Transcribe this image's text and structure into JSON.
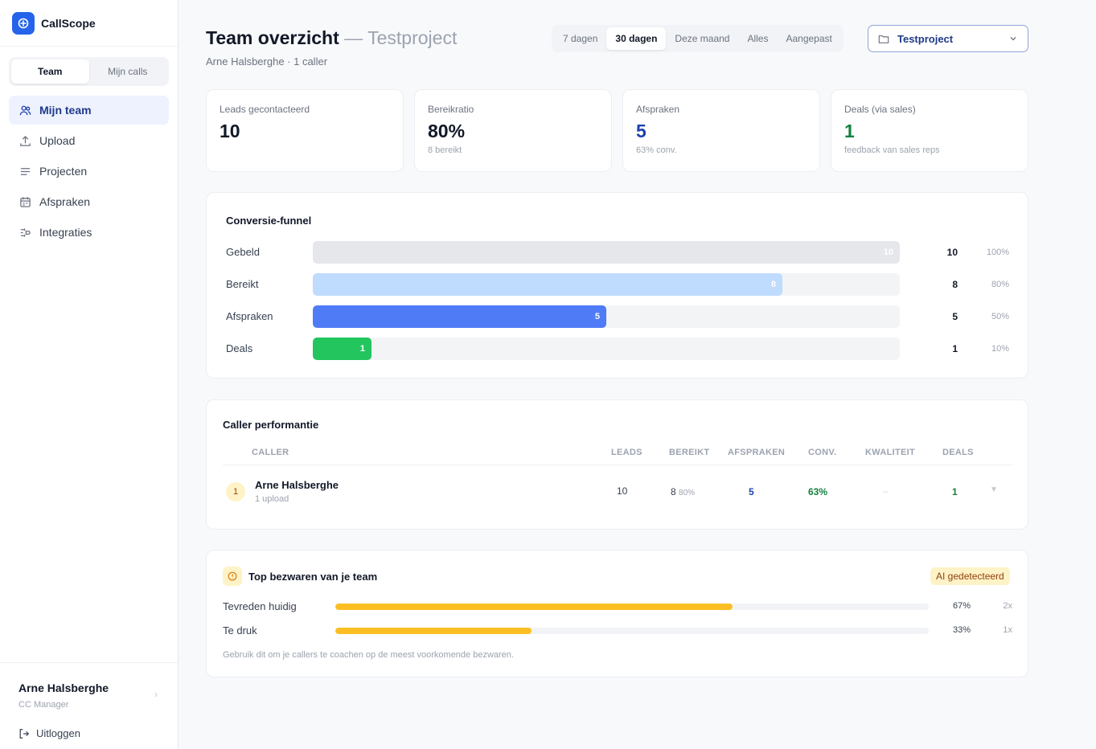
{
  "app": {
    "name": "CallScope"
  },
  "sidebar": {
    "tabs": [
      {
        "label": "Team",
        "active": true
      },
      {
        "label": "Mijn calls",
        "active": false
      }
    ],
    "items": [
      {
        "label": "Mijn team",
        "icon": "users-icon",
        "active": true
      },
      {
        "label": "Upload",
        "icon": "upload-icon",
        "active": false
      },
      {
        "label": "Projecten",
        "icon": "list-icon",
        "active": false
      },
      {
        "label": "Afspraken",
        "icon": "calendar-icon",
        "active": false
      },
      {
        "label": "Integraties",
        "icon": "plug-icon",
        "active": false
      }
    ],
    "user": {
      "name": "Arne Halsberghe",
      "role": "CC Manager"
    },
    "logout_label": "Uitloggen"
  },
  "header": {
    "title": "Team overzicht",
    "title_suffix": "— Testproject",
    "subtitle": "Arne Halsberghe · 1 caller",
    "ranges": [
      {
        "label": "7 dagen",
        "active": false
      },
      {
        "label": "30 dagen",
        "active": true
      },
      {
        "label": "Deze maand",
        "active": false
      },
      {
        "label": "Alles",
        "active": false
      },
      {
        "label": "Aangepast",
        "active": false
      }
    ],
    "project": "Testproject"
  },
  "kpis": [
    {
      "label": "Leads gecontacteerd",
      "value": "10",
      "hint": "",
      "color": "#111827"
    },
    {
      "label": "Bereikratio",
      "value": "80%",
      "hint": "8 bereikt",
      "color": "#111827"
    },
    {
      "label": "Afspraken",
      "value": "5",
      "hint": "63% conv.",
      "color": "#1e40af"
    },
    {
      "label": "Deals (via sales)",
      "value": "1",
      "hint": "feedback van sales reps",
      "color": "#15803d"
    }
  ],
  "funnel": {
    "title": "Conversie-funnel",
    "rows": [
      {
        "label": "Gebeld",
        "count": 10,
        "count_label": "10",
        "pct": "100%",
        "fraction": 1.0,
        "color": "#e5e7eb"
      },
      {
        "label": "Bereikt",
        "count": 8,
        "count_label": "8",
        "pct": "80%",
        "fraction": 0.8,
        "color": "#bfdbfe"
      },
      {
        "label": "Afspraken",
        "count": 5,
        "count_label": "5",
        "pct": "50%",
        "fraction": 0.5,
        "color": "#4f7bf7"
      },
      {
        "label": "Deals",
        "count": 1,
        "count_label": "1",
        "pct": "10%",
        "fraction": 0.1,
        "color": "#22c55e"
      }
    ]
  },
  "performance": {
    "title": "Caller performantie",
    "columns": {
      "caller": "CALLER",
      "leads": "LEADS",
      "reached": "BEREIKT",
      "appointments": "AFSPRAKEN",
      "conv": "CONV.",
      "quality": "KWALITEIT",
      "deals": "DEALS"
    },
    "rows": [
      {
        "rank": "1",
        "name": "Arne Halsberghe",
        "uploads": "1 upload",
        "leads": "10",
        "reached": "8",
        "reached_pct": "80%",
        "appointments": "5",
        "conv": "63%",
        "quality": "–",
        "deals": "1"
      }
    ]
  },
  "objections": {
    "title": "Top bezwaren van je team",
    "badge": "AI gedetecteerd",
    "rows": [
      {
        "label": "Tevreden huidig",
        "pct": "67%",
        "fraction": 0.67,
        "count": "2x"
      },
      {
        "label": "Te druk",
        "pct": "33%",
        "fraction": 0.33,
        "count": "1x"
      }
    ],
    "note": "Gebruik dit om je callers te coachen op de meest voorkomende bezwaren."
  }
}
